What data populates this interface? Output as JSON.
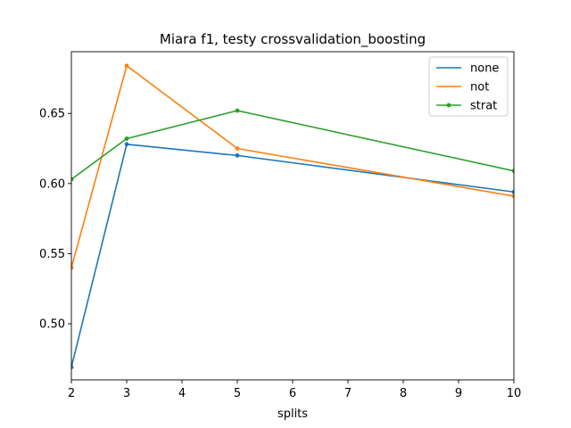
{
  "chart_data": {
    "type": "line",
    "title": "Miara f1, testy crossvalidation_boosting",
    "xlabel": "splits",
    "ylabel": "",
    "xlim": [
      2,
      10
    ],
    "ylim": [
      0.46,
      0.694
    ],
    "xticks": [
      2,
      3,
      4,
      5,
      6,
      7,
      8,
      9,
      10
    ],
    "yticks": [
      0.5,
      0.55,
      0.6,
      0.65
    ],
    "ytick_labels": [
      "0.50",
      "0.55",
      "0.60",
      "0.65"
    ],
    "grid": false,
    "legend_position": "top-right",
    "x": [
      2,
      3,
      5,
      10
    ],
    "series": [
      {
        "name": "none",
        "color": "#1f77b4",
        "values": [
          0.469,
          0.628,
          0.62,
          0.594
        ]
      },
      {
        "name": "not",
        "color": "#ff7f0e",
        "values": [
          0.54,
          0.684,
          0.625,
          0.591
        ]
      },
      {
        "name": "strat",
        "color": "#2ca02c",
        "values": [
          0.603,
          0.632,
          0.652,
          0.609
        ]
      }
    ]
  }
}
